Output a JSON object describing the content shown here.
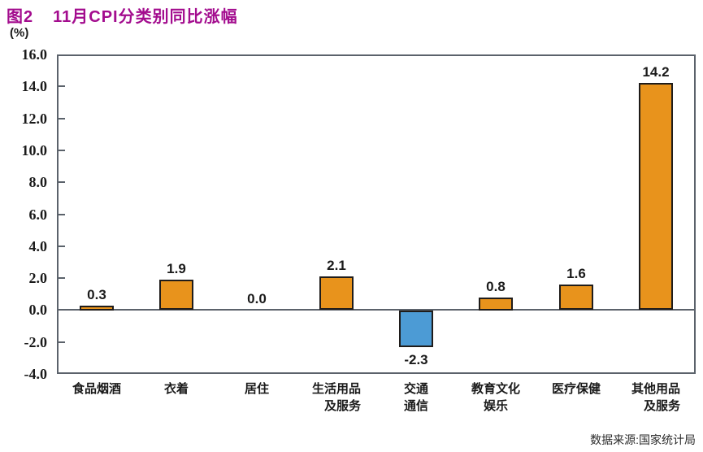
{
  "title": {
    "figure_label": "图2",
    "text": "11月CPI分类别同比涨幅"
  },
  "chart_data": {
    "type": "bar",
    "title": "11月CPI分类别同比涨幅",
    "categories": [
      "食品烟酒",
      "衣着",
      "居住",
      "生活用品及服务",
      "交通通信",
      "教育文化娱乐",
      "医疗保健",
      "其他用品及服务"
    ],
    "category_lines": [
      [
        "食品烟酒"
      ],
      [
        "衣着"
      ],
      [
        "居住"
      ],
      [
        "生活用品",
        "及服务"
      ],
      [
        "交通",
        "通信"
      ],
      [
        "教育文化",
        "娱乐"
      ],
      [
        "医疗保健"
      ],
      [
        "其他用品",
        "及服务"
      ]
    ],
    "category_align": [
      "center",
      "center",
      "center",
      "right",
      "center",
      "center",
      "center",
      "right"
    ],
    "values": [
      0.3,
      1.9,
      0.0,
      2.1,
      -2.3,
      0.8,
      1.6,
      14.2
    ],
    "value_labels": [
      "0.3",
      "1.9",
      "0.0",
      "2.1",
      "-2.3",
      "0.8",
      "1.6",
      "14.2"
    ],
    "xlabel": "",
    "ylabel": "(%)",
    "ylim": [
      -4.0,
      16.0
    ],
    "ytick_step": 2.0,
    "ytick_labels": [
      "16.0",
      "14.0",
      "12.0",
      "10.0",
      "8.0",
      "6.0",
      "4.0",
      "2.0",
      "0.0",
      "-2.0",
      "-4.0"
    ],
    "grid": false,
    "legend": false,
    "colors": {
      "positive_bar": "#E8931C",
      "negative_bar": "#4C9BD5",
      "bar_border": "#1f1c1a",
      "axis": "#5b626b",
      "title": "#A30C8E"
    },
    "source": "数据来源:国家统计局"
  }
}
